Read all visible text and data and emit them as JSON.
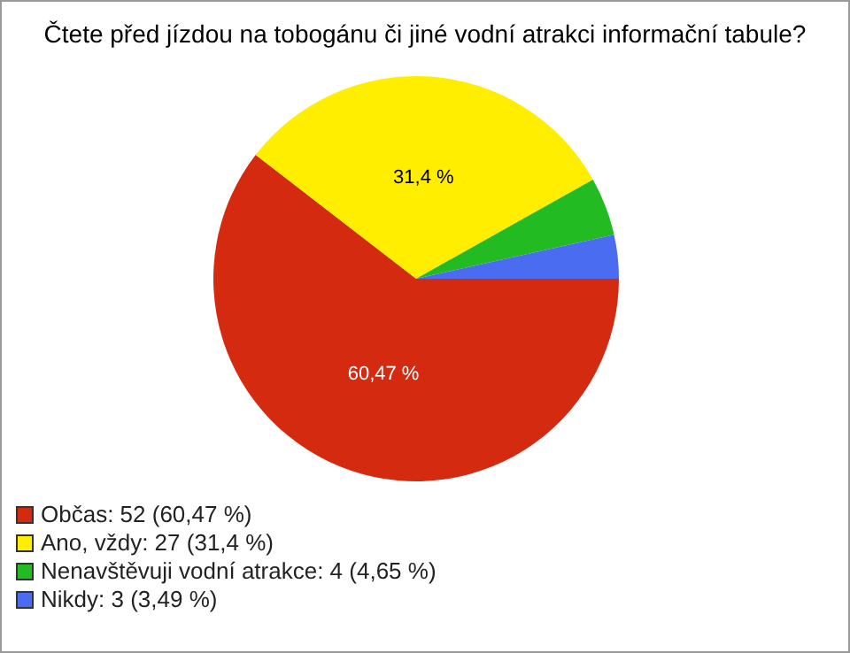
{
  "chart_data": {
    "type": "pie",
    "title": "Čtete před jízdou na tobogánu či jiné vodní atrakci informační tabule?",
    "categories": [
      "Občas: 52 (60,47 %)",
      "Ano, vždy: 27 (31,4 %)",
      "Nenavštěvuji vodní atrakce: 4 (4,65 %)",
      "Nikdy: 3 (3,49 %)"
    ],
    "values": [
      60.47,
      31.4,
      4.65,
      3.49
    ],
    "colors": [
      "#d42a10",
      "#ffee00",
      "#22bb22",
      "#4a6cf0"
    ],
    "value_labels": [
      "60,47 %",
      "31,4 %",
      null,
      null
    ],
    "legend": "bottom left"
  }
}
